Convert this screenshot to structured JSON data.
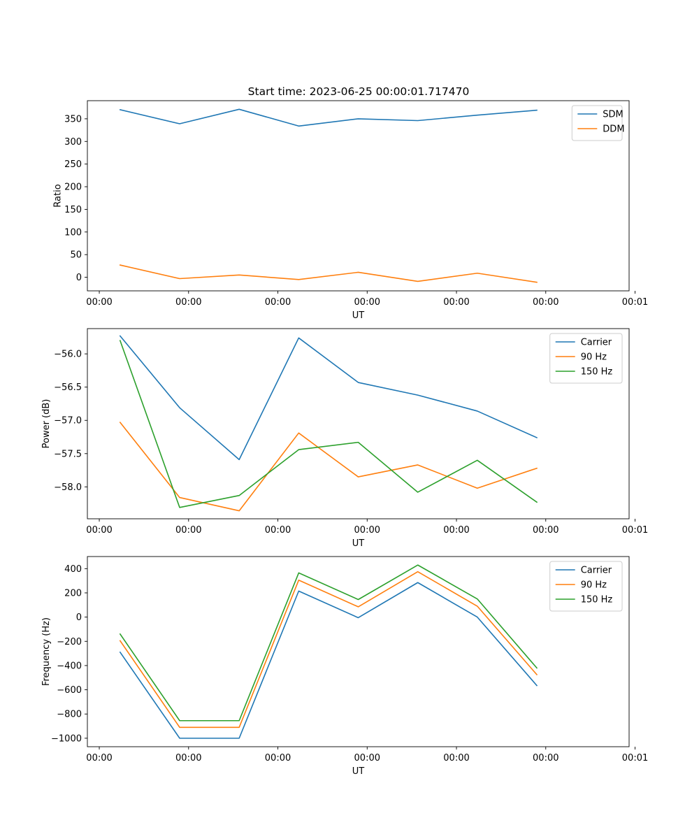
{
  "figure_title": "Start time: 2023-06-25 00:00:01.717470",
  "colors": {
    "blue": "#1f77b4",
    "orange": "#ff7f0e",
    "green": "#2ca02c"
  },
  "chart_data": [
    {
      "type": "line",
      "title": "Start time: 2023-06-25 00:00:01.717470",
      "xlabel": "UT",
      "ylabel": "Ratio",
      "x": [
        1,
        2,
        3,
        4,
        5,
        6,
        7,
        8
      ],
      "xlim": [
        0.45,
        9.55
      ],
      "xticks": [
        0.65,
        2.15,
        3.65,
        5.15,
        6.65,
        8.15,
        9.65
      ],
      "xtick_labels": [
        "00:00",
        "00:00",
        "00:00",
        "00:00",
        "00:00",
        "00:00",
        "00:01"
      ],
      "ylim": [
        -30,
        390
      ],
      "yticks": [
        0,
        50,
        100,
        150,
        200,
        250,
        300,
        350
      ],
      "ytick_labels": [
        "0",
        "50",
        "100",
        "150",
        "200",
        "250",
        "300",
        "350"
      ],
      "legend": "top-right",
      "grid": false,
      "series": [
        {
          "name": "SDM",
          "color": "#1f77b4",
          "values": [
            370,
            339,
            371,
            334,
            350,
            346,
            358,
            369
          ]
        },
        {
          "name": "DDM",
          "color": "#ff7f0e",
          "values": [
            27,
            -3,
            5,
            -5,
            11,
            -9,
            9,
            -11
          ]
        }
      ]
    },
    {
      "type": "line",
      "xlabel": "UT",
      "ylabel": "Power (dB)",
      "x": [
        1,
        2,
        3,
        4,
        5,
        6,
        7,
        8
      ],
      "xlim": [
        0.45,
        9.55
      ],
      "xticks": [
        0.65,
        2.15,
        3.65,
        5.15,
        6.65,
        8.15,
        9.65
      ],
      "xtick_labels": [
        "00:00",
        "00:00",
        "00:00",
        "00:00",
        "00:00",
        "00:00",
        "00:01"
      ],
      "ylim": [
        -58.48,
        -55.62
      ],
      "yticks": [
        -58.0,
        -57.5,
        -57.0,
        -56.5,
        -56.0
      ],
      "ytick_labels": [
        "−58.0",
        "−57.5",
        "−57.0",
        "−56.5",
        "−56.0"
      ],
      "legend": "top-right",
      "grid": false,
      "series": [
        {
          "name": "Carrier",
          "color": "#1f77b4",
          "values": [
            -55.73,
            -56.81,
            -57.59,
            -55.76,
            -56.43,
            -56.62,
            -56.86,
            -57.26
          ]
        },
        {
          "name": "90 Hz",
          "color": "#ff7f0e",
          "values": [
            -57.03,
            -58.16,
            -58.36,
            -57.19,
            -57.85,
            -57.67,
            -58.02,
            -57.72
          ]
        },
        {
          "name": "150 Hz",
          "color": "#2ca02c",
          "values": [
            -55.8,
            -58.31,
            -58.13,
            -57.44,
            -57.33,
            -58.08,
            -57.6,
            -58.23
          ]
        }
      ]
    },
    {
      "type": "line",
      "xlabel": "UT",
      "ylabel": "Frequency (Hz)",
      "x": [
        1,
        2,
        3,
        4,
        5,
        6,
        7,
        8
      ],
      "xlim": [
        0.45,
        9.55
      ],
      "xticks": [
        0.65,
        2.15,
        3.65,
        5.15,
        6.65,
        8.15,
        9.65
      ],
      "xtick_labels": [
        "00:00",
        "00:00",
        "00:00",
        "00:00",
        "00:00",
        "00:00",
        "00:01"
      ],
      "ylim": [
        -1070,
        500
      ],
      "yticks": [
        -1000,
        -800,
        -600,
        -400,
        -200,
        0,
        200,
        400
      ],
      "ytick_labels": [
        "−1000",
        "−800",
        "−600",
        "−400",
        "−200",
        "0",
        "200",
        "400"
      ],
      "legend": "top-right",
      "grid": false,
      "series": [
        {
          "name": "Carrier",
          "color": "#1f77b4",
          "values": [
            -290,
            -1000,
            -1000,
            215,
            -5,
            285,
            0,
            -565
          ]
        },
        {
          "name": "90 Hz",
          "color": "#ff7f0e",
          "values": [
            -195,
            -910,
            -910,
            305,
            85,
            375,
            90,
            -475
          ]
        },
        {
          "name": "150 Hz",
          "color": "#2ca02c",
          "values": [
            -140,
            -855,
            -855,
            365,
            145,
            430,
            150,
            -420
          ]
        }
      ]
    }
  ]
}
